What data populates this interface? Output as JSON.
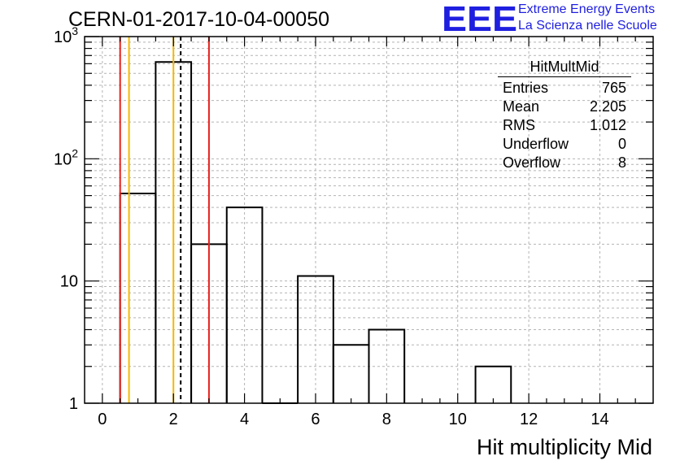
{
  "chart_data": {
    "type": "bar",
    "title": "CERN-01-2017-10-04-00050",
    "xlabel": "Hit multiplicity Mid",
    "ylabel": "",
    "xlim": [
      -0.5,
      15.5
    ],
    "ylim": [
      1,
      1000
    ],
    "y_scale": "log",
    "grid": true,
    "bin_edges": [
      0.5,
      1.5,
      2.5,
      3.5,
      4.5,
      5.5,
      6.5,
      7.5,
      8.5,
      9.5,
      10.5,
      11.5
    ],
    "values": [
      52,
      620,
      20,
      40,
      1,
      11,
      3,
      4,
      0,
      0,
      2
    ],
    "x_tick_labels": [
      "0",
      "2",
      "4",
      "6",
      "8",
      "10",
      "12",
      "14"
    ],
    "x_ticks": [
      0,
      2,
      4,
      6,
      8,
      10,
      12,
      14
    ],
    "y_tick_labels": [
      {
        "value": 1,
        "base": "1",
        "exp": ""
      },
      {
        "value": 10,
        "base": "10",
        "exp": ""
      },
      {
        "value": 100,
        "base": "10",
        "exp": "2"
      },
      {
        "value": 1000,
        "base": "10",
        "exp": "3"
      }
    ],
    "vertical_lines": [
      {
        "x": 0.5,
        "color": "#e8201c",
        "style": "solid"
      },
      {
        "x": 0.75,
        "color": "#f5b800",
        "style": "solid"
      },
      {
        "x": 2.0,
        "color": "#f5b800",
        "style": "solid"
      },
      {
        "x": 2.205,
        "color": "#000000",
        "style": "dashed"
      },
      {
        "x": 3.0,
        "color": "#e8201c",
        "style": "solid"
      }
    ],
    "stats_box": {
      "name": "HitMultMid",
      "rows": [
        {
          "label": "Entries",
          "value": "765"
        },
        {
          "label": "Mean",
          "value": "2.205"
        },
        {
          "label": "RMS",
          "value": "1.012"
        },
        {
          "label": "Underflow",
          "value": "0"
        },
        {
          "label": "Overflow",
          "value": "8"
        }
      ]
    }
  },
  "logo": {
    "mark": "EEE",
    "line1": "Extreme Energy Events",
    "line2": "La Scienza nelle Scuole",
    "color": "#1f1fe0"
  }
}
